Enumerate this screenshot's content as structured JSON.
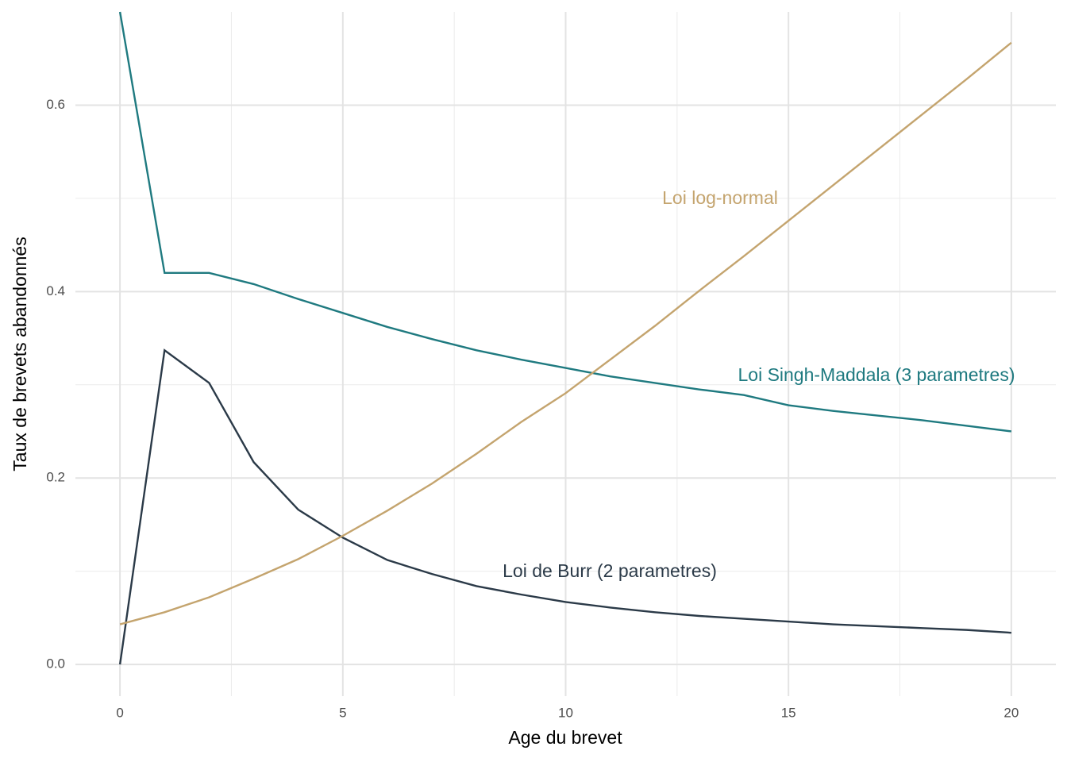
{
  "chart_data": {
    "type": "line",
    "x_label": "Age du brevet",
    "y_label": "Taux de brevets abandonnés",
    "x": [
      0,
      1,
      2,
      3,
      4,
      5,
      6,
      7,
      8,
      9,
      10,
      11,
      12,
      13,
      14,
      15,
      16,
      17,
      18,
      19,
      20
    ],
    "series": [
      {
        "name": "Loi Singh-Maddala (3 parametres)",
        "color": "#1f7a80",
        "values": [
          0.7,
          0.42,
          0.42,
          0.408,
          0.392,
          0.377,
          0.362,
          0.349,
          0.337,
          0.327,
          0.318,
          0.309,
          0.302,
          0.295,
          0.289,
          0.278,
          0.272,
          0.267,
          0.262,
          0.256,
          0.25
        ]
      },
      {
        "name": "Loi de Burr (2 parametres)",
        "color": "#2b3a48",
        "values": [
          0,
          0.337,
          0.302,
          0.217,
          0.166,
          0.136,
          0.112,
          0.097,
          0.084,
          0.075,
          0.067,
          0.061,
          0.056,
          0.052,
          0.049,
          0.046,
          0.043,
          0.041,
          0.039,
          0.037,
          0.034
        ]
      },
      {
        "name": "Loi log-normal",
        "color": "#c4a46e",
        "values": [
          0.043,
          0.056,
          0.072,
          0.092,
          0.113,
          0.138,
          0.165,
          0.194,
          0.226,
          0.26,
          0.291,
          0.327,
          0.363,
          0.401,
          0.438,
          0.476,
          0.514,
          0.552,
          0.59,
          0.628,
          0.667
        ]
      }
    ],
    "xlim": [
      -1,
      21
    ],
    "ylim": [
      -0.034,
      0.7
    ],
    "xticks": [
      0,
      5,
      10,
      15,
      20
    ],
    "yticks": [
      {
        "value": 0,
        "label": "0.0"
      },
      0.2,
      0.4,
      0.6
    ],
    "x_minor_ticks": [
      2.5,
      7.5,
      12.5,
      17.5
    ],
    "y_minor_ticks": [
      0.1,
      0.3,
      0.5
    ],
    "grid": true
  }
}
